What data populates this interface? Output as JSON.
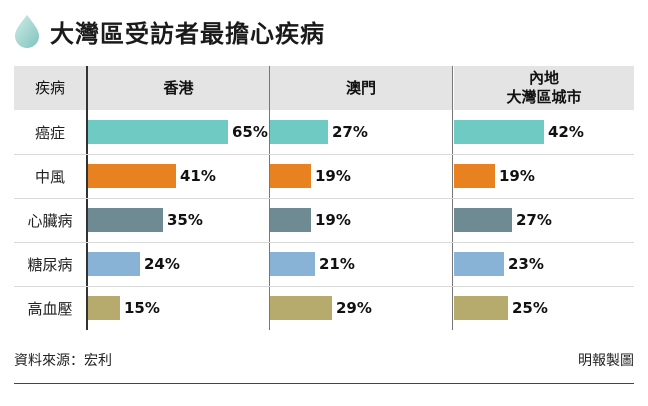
{
  "title": "大灣區受訪者最擔心疾病",
  "table_header": {
    "first": "疾病"
  },
  "source": "資料來源：宏利",
  "credit": "明報製圖",
  "chart_data": {
    "type": "bar",
    "title": "大灣區受訪者最擔心疾病",
    "categories": [
      "癌症",
      "中風",
      "心臟病",
      "糖尿病",
      "高血壓"
    ],
    "series": [
      {
        "name": "香港",
        "values": [
          65,
          41,
          35,
          24,
          15
        ]
      },
      {
        "name": "澳門",
        "values": [
          27,
          19,
          19,
          21,
          29
        ]
      },
      {
        "name": "內地\n大灣區城市",
        "values": [
          42,
          19,
          27,
          23,
          25
        ]
      }
    ],
    "unit": "%",
    "colors": [
      "#6fcac4",
      "#e8811f",
      "#6e8a92",
      "#89b3d6",
      "#b6aa6c"
    ],
    "ylim": [
      0,
      70
    ]
  }
}
